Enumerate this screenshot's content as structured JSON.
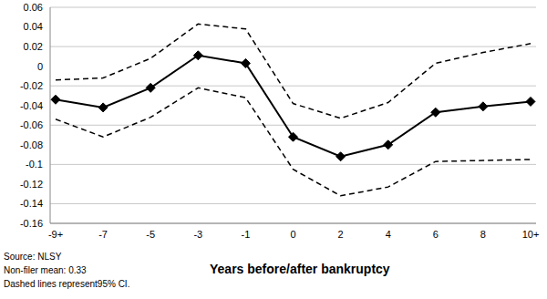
{
  "chart_data": {
    "type": "line",
    "categories": [
      "-9+",
      "-7",
      "-5",
      "-3",
      "-1",
      "0",
      "2",
      "4",
      "6",
      "8",
      "10+"
    ],
    "series": [
      {
        "color": "#000000",
        "marker": "diamond",
        "line_style": "solid",
        "values": [
          -0.034,
          -0.042,
          -0.022,
          0.011,
          0.003,
          -0.072,
          -0.092,
          -0.08,
          -0.047,
          -0.041,
          -0.036
        ]
      },
      {
        "color": "#000000",
        "marker": "none",
        "line_style": "dashed",
        "values": [
          -0.014,
          -0.012,
          0.008,
          0.043,
          0.038,
          -0.038,
          -0.053,
          -0.037,
          0.003,
          0.014,
          0.023
        ]
      },
      {
        "color": "#000000",
        "marker": "none",
        "line_style": "dashed",
        "values": [
          -0.054,
          -0.072,
          -0.052,
          -0.022,
          -0.032,
          -0.105,
          -0.132,
          -0.123,
          -0.097,
          -0.096,
          -0.095
        ]
      }
    ],
    "ylim": [
      -0.16,
      0.06
    ],
    "yticks": [
      -0.16,
      -0.14,
      -0.12,
      -0.1,
      -0.08,
      -0.06,
      -0.04,
      -0.02,
      0,
      0.02,
      0.04,
      0.06
    ],
    "grid": true,
    "x_label": "Years before/after bankruptcy",
    "annotations": [
      "Source: NLSY",
      "Non-filer mean: 0.33",
      "Dashed lines represent95% CI."
    ]
  }
}
